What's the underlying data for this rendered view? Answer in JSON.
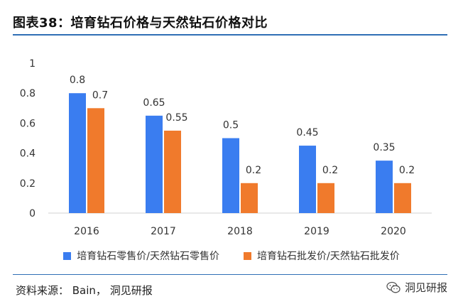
{
  "title": "图表38：培育钻石价格与天然钻石价格对比",
  "source": "资料来源： Bain， 洞见研报",
  "brand": "洞见研报",
  "colors": {
    "series1": "#3a7df0",
    "series2": "#f07a2c",
    "accent": "#2f6fb5"
  },
  "icons": {
    "brand_icon": "wechat-icon"
  },
  "chart_data": {
    "type": "bar",
    "categories": [
      "2016",
      "2017",
      "2018",
      "2019",
      "2020"
    ],
    "series": [
      {
        "name": "培育钻石零售价/天然钻石零售价",
        "values": [
          0.8,
          0.65,
          0.5,
          0.45,
          0.35
        ],
        "labels": [
          "0.8",
          "0.65",
          "0.5",
          "0.45",
          "0.35"
        ]
      },
      {
        "name": "培育钻石批发价/天然钻石批发价",
        "values": [
          0.7,
          0.55,
          0.2,
          0.2,
          0.2
        ],
        "labels": [
          "0.7",
          "0.55",
          "0.2",
          "0.2",
          "0.2"
        ]
      }
    ],
    "ylim": [
      0,
      1
    ],
    "yticks": [
      "0",
      "0.2",
      "0.4",
      "0.6",
      "0.8",
      "1"
    ],
    "grid": false,
    "legend": "bottom"
  }
}
